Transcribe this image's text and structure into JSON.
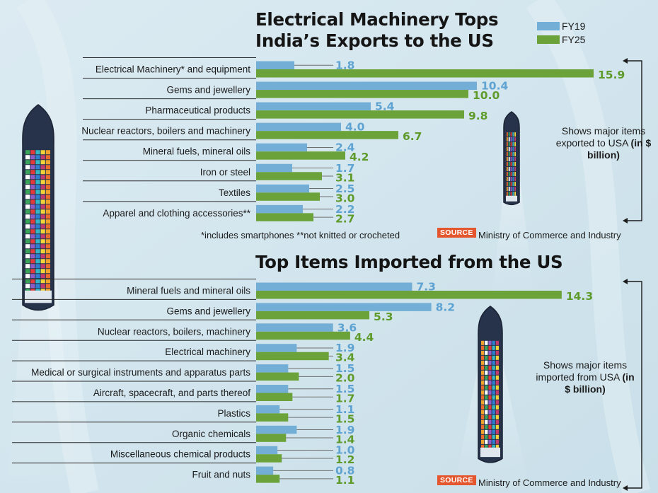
{
  "legend": [
    {
      "label": "FY19",
      "color": "#73aed6"
    },
    {
      "label": "FY25",
      "color": "#6ba33a"
    }
  ],
  "footnote": "*includes smartphones **not knitted or crocheted",
  "source": {
    "badge": "SOURCE",
    "text": "Ministry of Commerce and Industry"
  },
  "side_note_exports": {
    "text": "Shows major items exported to USA",
    "unit": "(in $ billion)"
  },
  "side_note_imports": {
    "text": "Shows major items imported from USA",
    "unit": "(in $ billion)"
  },
  "chart_data": [
    {
      "type": "bar",
      "orientation": "horizontal",
      "title": "Electrical Machinery Tops India’s Exports to the US",
      "title_lines": [
        "Electrical Machinery Tops",
        "India’s Exports to the US"
      ],
      "categories": [
        "Electrical Machinery* and equipment",
        "Gems and jewellery",
        "Pharmaceutical products",
        "Nuclear reactors, boilers and machinery",
        "Mineral fuels, mineral oils",
        "Iron or steel",
        "Textiles",
        "Apparel and clothing accessories**"
      ],
      "series": [
        {
          "name": "FY19",
          "values": [
            1.8,
            10.4,
            5.4,
            4.0,
            2.4,
            1.7,
            2.5,
            2.2
          ]
        },
        {
          "name": "FY25",
          "values": [
            15.9,
            10.0,
            9.8,
            6.7,
            4.2,
            3.1,
            3.0,
            2.7
          ]
        }
      ],
      "value_labels": {
        "FY19": [
          "1.8",
          "10.4",
          "5.4",
          "4.0",
          "2.4",
          "1.7",
          "2.5",
          "2.2"
        ],
        "FY25": [
          "15.9",
          "10.0",
          "9.8",
          "6.7",
          "4.2",
          "3.1",
          "3.0",
          "2.7"
        ]
      },
      "unit": "$ billion",
      "legend_position": "top-right",
      "grid": false
    },
    {
      "type": "bar",
      "orientation": "horizontal",
      "title": "Top Items Imported from the US",
      "title_lines": [
        "Top Items Imported from the US"
      ],
      "categories": [
        "Mineral fuels and mineral oils",
        "Gems and jewellery",
        "Nuclear reactors, boilers, machinery",
        "Electrical machinery",
        "Medical or surgical instruments and apparatus parts",
        "Aircraft, spacecraft, and parts thereof",
        "Plastics",
        "Organic chemicals",
        "Miscellaneous chemical products",
        "Fruit and nuts"
      ],
      "series": [
        {
          "name": "FY19",
          "values": [
            7.3,
            8.2,
            3.6,
            1.9,
            1.5,
            1.5,
            1.1,
            1.9,
            1.0,
            0.8
          ]
        },
        {
          "name": "FY25",
          "values": [
            14.3,
            5.3,
            4.4,
            3.4,
            2.0,
            1.7,
            1.5,
            1.4,
            1.2,
            1.1
          ]
        }
      ],
      "value_labels": {
        "FY19": [
          "7.3",
          "8.2",
          "3.6",
          "1.9",
          "1.5",
          "1.5",
          "1.1",
          "1.9",
          "1.0",
          "0.8"
        ],
        "FY25": [
          "14.3",
          "5.3",
          "4.4",
          "3.4",
          "2.0",
          "1.7",
          "1.5",
          "1.4",
          "1.2",
          "1.1"
        ]
      },
      "unit": "$ billion",
      "grid": false
    }
  ]
}
